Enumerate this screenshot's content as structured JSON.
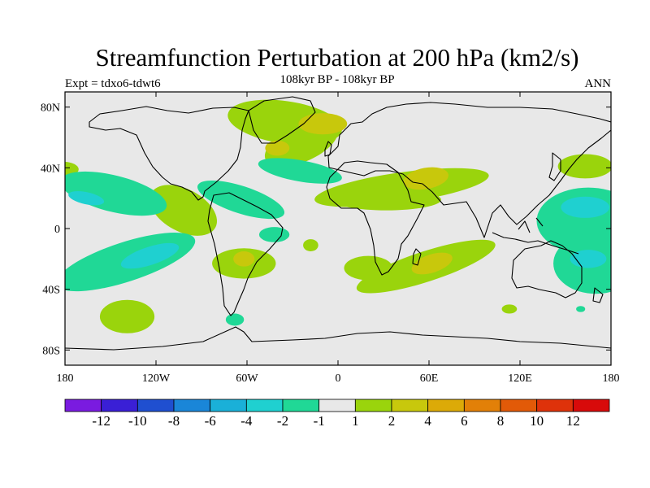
{
  "chart_data": {
    "type": "contour-map",
    "title": "Streamfunction Perturbation at 200 hPa (km2/s)",
    "subtitle": "108kyr BP - 108kyr BP",
    "left_label": "Expt = tdxo6-tdwt6",
    "right_label": "ANN",
    "x_range": [
      -180,
      180
    ],
    "y_range": [
      -90,
      90
    ],
    "x_ticks": [
      {
        "value": -180,
        "label": "180"
      },
      {
        "value": -120,
        "label": "120W"
      },
      {
        "value": -60,
        "label": "60W"
      },
      {
        "value": 0,
        "label": "0"
      },
      {
        "value": 60,
        "label": "60E"
      },
      {
        "value": 120,
        "label": "120E"
      },
      {
        "value": 180,
        "label": "180"
      }
    ],
    "y_ticks": [
      {
        "value": 80,
        "label": "80N"
      },
      {
        "value": 40,
        "label": "40N"
      },
      {
        "value": 0,
        "label": "0"
      },
      {
        "value": -40,
        "label": "40S"
      },
      {
        "value": -80,
        "label": "80S"
      }
    ],
    "colorbar": {
      "colors": [
        "#7a1be0",
        "#3a1fd6",
        "#1f4fd0",
        "#1a86d8",
        "#1ab0d8",
        "#1fd0d0",
        "#20d896",
        "#e8e8e8",
        "#9ad40c",
        "#c8c80c",
        "#dcaa08",
        "#e28008",
        "#e25a08",
        "#de320a",
        "#d80a0a"
      ],
      "labels": [
        "-12",
        "-10",
        "-8",
        "-6",
        "-4",
        "-2",
        "-1",
        "1",
        "2",
        "4",
        "6",
        "8",
        "10",
        "12"
      ]
    },
    "regions": [
      {
        "level": 2,
        "color": "#9ad40c",
        "ellipses": [
          {
            "lon": -35,
            "lat": 70,
            "rlon": 38,
            "rlat": 14,
            "rot": -8
          },
          {
            "lon": -24,
            "lat": 56,
            "rlon": 26,
            "rlat": 12,
            "rot": 24
          },
          {
            "lon": 42,
            "lat": 27,
            "rlon": 58,
            "rlat": 10,
            "rot": 8
          },
          {
            "lon": 32,
            "lat": 19,
            "rlon": 36,
            "rlat": 7,
            "rot": 0
          },
          {
            "lon": 58,
            "lat": -25,
            "rlon": 48,
            "rlat": 10,
            "rot": 18
          },
          {
            "lon": 20,
            "lat": -26,
            "rlon": 16,
            "rlat": 8,
            "rot": 0
          },
          {
            "lon": -62,
            "lat": -23,
            "rlon": 21,
            "rlat": 10,
            "rot": 0
          },
          {
            "lon": -102,
            "lat": 12,
            "rlon": 24,
            "rlat": 14,
            "rot": -28
          },
          {
            "lon": -139,
            "lat": -58,
            "rlon": 18,
            "rlat": 11,
            "rot": 0
          },
          {
            "lon": 163,
            "lat": 41,
            "rlon": 18,
            "rlat": 8,
            "rot": 0
          },
          {
            "lon": -181,
            "lat": 39,
            "rlon": 10,
            "rlat": 5,
            "rot": 0
          },
          {
            "lon": -18,
            "lat": -11,
            "rlon": 5,
            "rlat": 4,
            "rot": 0
          },
          {
            "lon": 113,
            "lat": -53,
            "rlon": 5,
            "rlat": 3,
            "rot": 0
          }
        ]
      },
      {
        "level": 4,
        "color": "#c8c80c",
        "ellipses": [
          {
            "lon": -10,
            "lat": 69,
            "rlon": 16,
            "rlat": 7,
            "rot": 0
          },
          {
            "lon": -40,
            "lat": 53,
            "rlon": 8,
            "rlat": 5,
            "rot": 0
          },
          {
            "lon": 58,
            "lat": 33,
            "rlon": 15,
            "rlat": 7,
            "rot": 10
          },
          {
            "lon": 62,
            "lat": -23,
            "rlon": 14,
            "rlat": 6,
            "rot": 18
          },
          {
            "lon": -62,
            "lat": -20,
            "rlon": 7,
            "rlat": 5,
            "rot": 0
          }
        ]
      },
      {
        "level": -1,
        "color": "#20d896",
        "ellipses": [
          {
            "lon": -148,
            "lat": 23,
            "rlon": 36,
            "rlat": 12,
            "rot": -14
          },
          {
            "lon": -140,
            "lat": -22,
            "rlon": 48,
            "rlat": 13,
            "rot": 18
          },
          {
            "lon": -64,
            "lat": 19,
            "rlon": 30,
            "rlat": 9,
            "rot": -18
          },
          {
            "lon": -25,
            "lat": 38,
            "rlon": 28,
            "rlat": 7,
            "rot": -10
          },
          {
            "lon": 165,
            "lat": 5,
            "rlon": 34,
            "rlat": 22,
            "rot": 0
          },
          {
            "lon": 170,
            "lat": -23,
            "rlon": 28,
            "rlat": 20,
            "rot": 0
          },
          {
            "lon": -42,
            "lat": -4,
            "rlon": 10,
            "rlat": 5,
            "rot": 0
          },
          {
            "lon": -68,
            "lat": -60,
            "rlon": 6,
            "rlat": 4,
            "rot": 0
          },
          {
            "lon": 160,
            "lat": -53,
            "rlon": 3,
            "rlat": 2,
            "rot": 0
          }
        ]
      },
      {
        "level": -2,
        "color": "#1fd0d0",
        "ellipses": [
          {
            "lon": -124,
            "lat": -18,
            "rlon": 20,
            "rlat": 6,
            "rot": 18
          },
          {
            "lon": -166,
            "lat": 20,
            "rlon": 12,
            "rlat": 4,
            "rot": -12
          },
          {
            "lon": 163,
            "lat": 14,
            "rlon": 16,
            "rlat": 7,
            "rot": 0
          },
          {
            "lon": 165,
            "lat": -20,
            "rlon": 12,
            "rlat": 6,
            "rot": 0
          }
        ]
      }
    ]
  }
}
